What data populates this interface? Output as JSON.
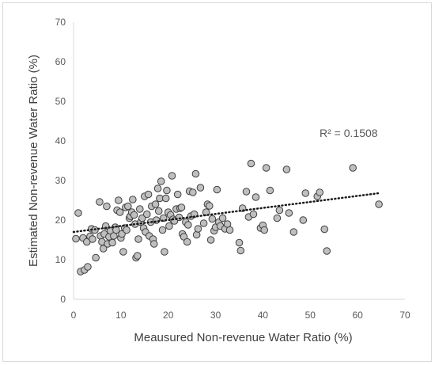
{
  "chart_data": {
    "type": "scatter",
    "title": "",
    "xlabel": "Meausured Non-revenue Water Ratio (%)",
    "ylabel": "Estimated Non-revenue Water Ratio (%)",
    "xlim": [
      0,
      70
    ],
    "ylim": [
      0,
      70
    ],
    "xticks": [
      0,
      10,
      20,
      30,
      40,
      50,
      60,
      70
    ],
    "yticks": [
      0,
      10,
      20,
      30,
      40,
      50,
      60,
      70
    ],
    "grid": false,
    "marker_color": "#bfbfbf",
    "marker_edge": "#404040",
    "annotation": "R² = 0.1508",
    "trendline": {
      "style": "dotted",
      "x": [
        0,
        64.5
      ],
      "y": [
        17.0,
        26.8
      ]
    },
    "points": [
      [
        0.5,
        15.3
      ],
      [
        1,
        21.8
      ],
      [
        1.5,
        7
      ],
      [
        2,
        15.5
      ],
      [
        2.3,
        7.4
      ],
      [
        2.8,
        14.5
      ],
      [
        3,
        8.2
      ],
      [
        3.5,
        15.9
      ],
      [
        3.8,
        17.8
      ],
      [
        4,
        15.2
      ],
      [
        4.5,
        17.5
      ],
      [
        4.7,
        10.5
      ],
      [
        5.5,
        24.6
      ],
      [
        5.7,
        16
      ],
      [
        6,
        14.5
      ],
      [
        6.3,
        12.8
      ],
      [
        6.5,
        16.5
      ],
      [
        6.8,
        18.5
      ],
      [
        7,
        23.5
      ],
      [
        7.2,
        14
      ],
      [
        7.5,
        15.8
      ],
      [
        7.8,
        17.3
      ],
      [
        8.2,
        14.3
      ],
      [
        8.5,
        16
      ],
      [
        8.8,
        18.2
      ],
      [
        9,
        17.5
      ],
      [
        9.2,
        22.5
      ],
      [
        9.5,
        25
      ],
      [
        9.8,
        22
      ],
      [
        10,
        15.5
      ],
      [
        10.2,
        16.5
      ],
      [
        10.5,
        12
      ],
      [
        10.8,
        18
      ],
      [
        11,
        23.2
      ],
      [
        11.2,
        17.5
      ],
      [
        11.5,
        23.5
      ],
      [
        11.8,
        20.5
      ],
      [
        12,
        21
      ],
      [
        12.3,
        22
      ],
      [
        12.5,
        25.2
      ],
      [
        12.8,
        21.3
      ],
      [
        13,
        19
      ],
      [
        13.2,
        10.5
      ],
      [
        13.5,
        11
      ],
      [
        13.7,
        15.2
      ],
      [
        14,
        22.8
      ],
      [
        14.2,
        19.5
      ],
      [
        14.5,
        20.5
      ],
      [
        14.8,
        18
      ],
      [
        15,
        26
      ],
      [
        15.2,
        17
      ],
      [
        15.5,
        21.5
      ],
      [
        15.8,
        26.5
      ],
      [
        16,
        16
      ],
      [
        16.3,
        19.5
      ],
      [
        16.5,
        23.5
      ],
      [
        16.8,
        15.2
      ],
      [
        17,
        14
      ],
      [
        17.3,
        24
      ],
      [
        17.5,
        20
      ],
      [
        17.8,
        28
      ],
      [
        18,
        22.3
      ],
      [
        18.2,
        25.5
      ],
      [
        18.5,
        29.8
      ],
      [
        18.8,
        17.5
      ],
      [
        19,
        20.5
      ],
      [
        19.2,
        12
      ],
      [
        19.5,
        25.5
      ],
      [
        19.7,
        27.5
      ],
      [
        20,
        22
      ],
      [
        20.2,
        18.5
      ],
      [
        20.5,
        21.3
      ],
      [
        20.8,
        31.2
      ],
      [
        21,
        20.2
      ],
      [
        21.3,
        19.8
      ],
      [
        21.7,
        22.8
      ],
      [
        22,
        26.5
      ],
      [
        22.3,
        20.7
      ],
      [
        22.5,
        23
      ],
      [
        22.8,
        23.2
      ],
      [
        23,
        16.5
      ],
      [
        23.3,
        15.8
      ],
      [
        23.7,
        19.5
      ],
      [
        24,
        14.5
      ],
      [
        24.2,
        18.8
      ],
      [
        24.5,
        27.3
      ],
      [
        24.8,
        21
      ],
      [
        25.2,
        27
      ],
      [
        25.5,
        21.5
      ],
      [
        25.8,
        31.7
      ],
      [
        26,
        16.3
      ],
      [
        26.3,
        17.8
      ],
      [
        26.8,
        28.2
      ],
      [
        27.5,
        19.2
      ],
      [
        28,
        22
      ],
      [
        28.3,
        24
      ],
      [
        28.7,
        23.6
      ],
      [
        29,
        15
      ],
      [
        29.3,
        20.3
      ],
      [
        29.7,
        17.3
      ],
      [
        30,
        18.2
      ],
      [
        30.3,
        27.7
      ],
      [
        30.7,
        19.5
      ],
      [
        31,
        18.5
      ],
      [
        31.5,
        20.5
      ],
      [
        32,
        17.8
      ],
      [
        32.5,
        19
      ],
      [
        33,
        17.5
      ],
      [
        35,
        14.3
      ],
      [
        35.3,
        12.3
      ],
      [
        35.7,
        23
      ],
      [
        36.5,
        27.2
      ],
      [
        37,
        20.8
      ],
      [
        37.5,
        34.3
      ],
      [
        38,
        21.5
      ],
      [
        38.5,
        25.8
      ],
      [
        39.5,
        18
      ],
      [
        40,
        18.7
      ],
      [
        40.3,
        17.5
      ],
      [
        40.7,
        33.2
      ],
      [
        41.5,
        27.5
      ],
      [
        43,
        20.5
      ],
      [
        43.5,
        22.5
      ],
      [
        45,
        32.8
      ],
      [
        45.5,
        21.8
      ],
      [
        46.5,
        17
      ],
      [
        48.5,
        20
      ],
      [
        49,
        26.8
      ],
      [
        51.5,
        26
      ],
      [
        52,
        27
      ],
      [
        53,
        17.7
      ],
      [
        53.5,
        12.2
      ],
      [
        59,
        33.2
      ],
      [
        64.5,
        24
      ]
    ]
  }
}
